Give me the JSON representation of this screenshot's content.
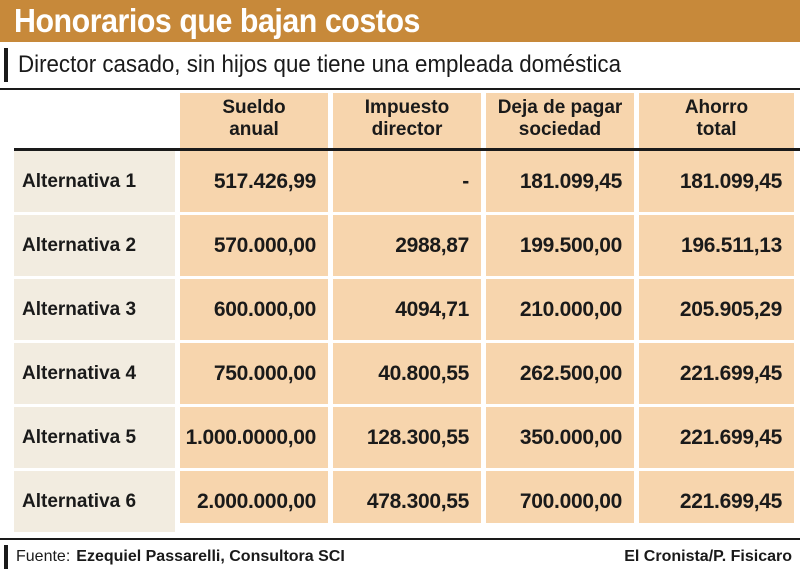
{
  "title": "Honorarios que bajan costos",
  "subtitle": "Director casado, sin hijos que tiene una empleada doméstica",
  "colors": {
    "title_bar": "#c7893a",
    "column_fill": "#f7d5ad",
    "label_fill": "#f2ece0"
  },
  "table": {
    "headers": [
      {
        "line1": "Sueldo",
        "line2": "anual"
      },
      {
        "line1": "Impuesto",
        "line2": "director"
      },
      {
        "line1": "Deja de pagar",
        "line2": "sociedad"
      },
      {
        "line1": "Ahorro",
        "line2": "total"
      }
    ],
    "rows": [
      {
        "label": "Alternativa 1",
        "values": [
          "517.426,99",
          "-",
          "181.099,45",
          "181.099,45"
        ]
      },
      {
        "label": "Alternativa 2",
        "values": [
          "570.000,00",
          "2988,87",
          "199.500,00",
          "196.511,13"
        ]
      },
      {
        "label": "Alternativa 3",
        "values": [
          "600.000,00",
          "4094,71",
          "210.000,00",
          "205.905,29"
        ]
      },
      {
        "label": "Alternativa 4",
        "values": [
          "750.000,00",
          "40.800,55",
          "262.500,00",
          "221.699,45"
        ]
      },
      {
        "label": "Alternativa 5",
        "values": [
          "1.000.0000,00",
          "128.300,55",
          "350.000,00",
          "221.699,45"
        ]
      },
      {
        "label": "Alternativa 6",
        "values": [
          "2.000.000,00",
          "478.300,55",
          "700.000,00",
          "221.699,45"
        ]
      }
    ]
  },
  "footer": {
    "source_label": "Fuente:",
    "source_value": "Ezequiel Passarelli, Consultora SCI",
    "credit": "El Cronista/P. Fisicaro"
  }
}
